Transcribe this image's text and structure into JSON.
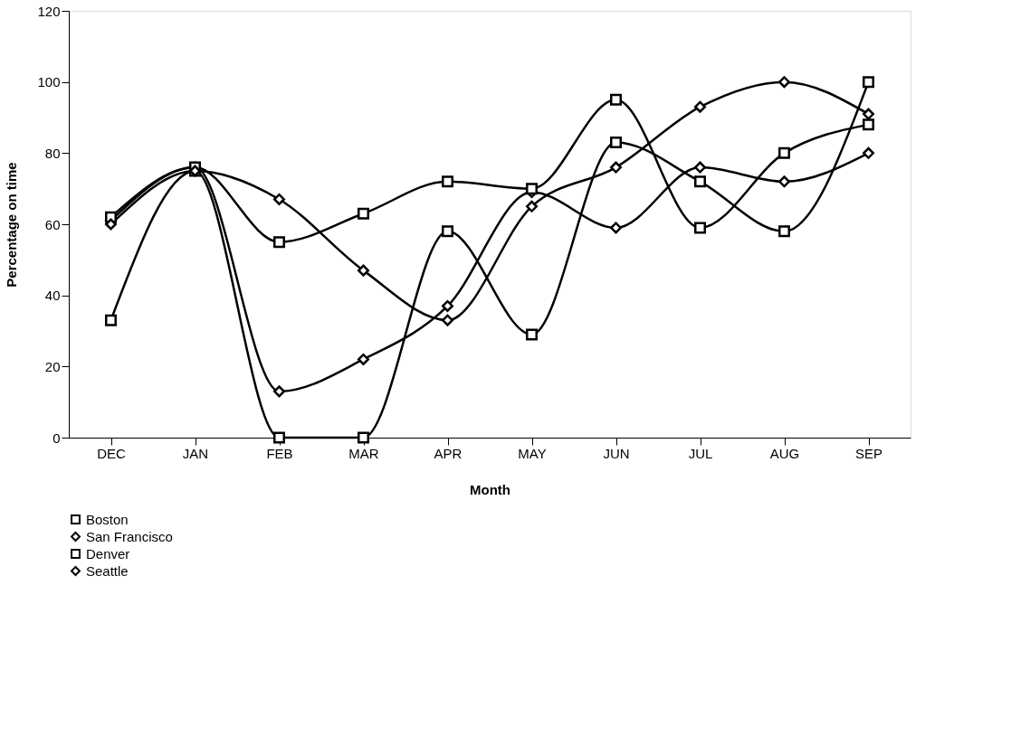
{
  "chart_data": {
    "type": "line",
    "xlabel": "Month",
    "ylabel": "Percentage on time",
    "categories": [
      "DEC",
      "JAN",
      "FEB",
      "MAR",
      "APR",
      "MAY",
      "JUN",
      "JUL",
      "AUG",
      "SEP"
    ],
    "ylim": [
      0,
      120
    ],
    "yticks": [
      0,
      20,
      40,
      60,
      80,
      100,
      120
    ],
    "grid": false,
    "legend": "bottom",
    "line_style": "solid",
    "series": [
      {
        "name": "Boston",
        "color": "#000000",
        "marker": "square",
        "values": [
          33,
          75,
          0,
          0,
          58,
          29,
          83,
          72,
          58,
          100
        ]
      },
      {
        "name": "San Francisco",
        "color": "#000000",
        "marker": "diamond",
        "values": [
          61,
          76,
          13,
          22,
          37,
          69,
          59,
          76,
          72,
          80
        ]
      },
      {
        "name": "Denver",
        "color": "#000000",
        "marker": "square",
        "values": [
          62,
          76,
          55,
          63,
          72,
          70,
          95,
          59,
          80,
          88
        ]
      },
      {
        "name": "Seattle",
        "color": "#000000",
        "marker": "diamond",
        "values": [
          60,
          75,
          67,
          47,
          33,
          65,
          76,
          93,
          100,
          91
        ]
      }
    ]
  }
}
